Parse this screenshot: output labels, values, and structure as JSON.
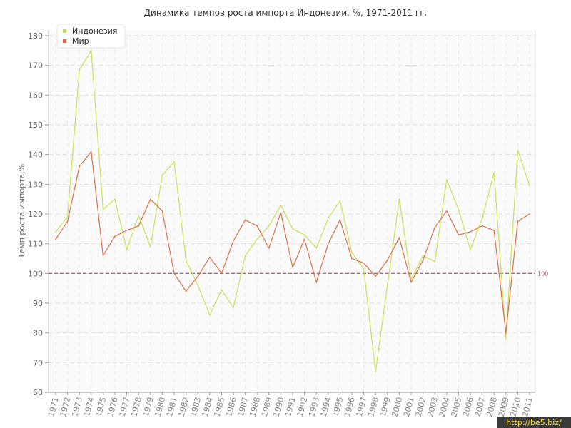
{
  "chart_data": {
    "type": "line",
    "title": "Динамика темпов роста импорта Индонезии, %, 1971-2011 гг.",
    "ylabel": "Темп роста импорта,%",
    "xlabel": "",
    "ylim": [
      60,
      180
    ],
    "yticks": [
      60,
      70,
      80,
      90,
      100,
      110,
      120,
      130,
      140,
      150,
      160,
      170,
      180
    ],
    "grid": true,
    "legend_position": "top-left",
    "categories": [
      "1971",
      "1972",
      "1973",
      "1974",
      "1975",
      "1976",
      "1977",
      "1978",
      "1979",
      "1980",
      "1981",
      "1982",
      "1983",
      "1984",
      "1985",
      "1986",
      "1987",
      "1988",
      "1989",
      "1990",
      "1991",
      "1992",
      "1993",
      "1994",
      "1995",
      "1996",
      "1997",
      "1998",
      "1999",
      "2000",
      "2001",
      "2002",
      "2003",
      "2004",
      "2005",
      "2006",
      "2007",
      "2008",
      "2009",
      "2010",
      "2011"
    ],
    "series": [
      {
        "name": "Индонезия",
        "color": "#c8e05a",
        "values": [
          114,
          119,
          168.5,
          175,
          121.5,
          125,
          108,
          119.5,
          109,
          133,
          137.5,
          104.5,
          96,
          86,
          94.5,
          88.5,
          106,
          111.5,
          116,
          123,
          115,
          113,
          108.5,
          118.5,
          124.5,
          107,
          101.5,
          67,
          96,
          125,
          98,
          106,
          104,
          131.5,
          121.5,
          108,
          118.5,
          134,
          78,
          141.5,
          129.5
        ]
      },
      {
        "name": "Мир",
        "color": "#d9704a",
        "values": [
          111.5,
          117.5,
          136,
          141,
          106,
          112.5,
          114.5,
          116,
          125,
          121,
          100,
          94,
          99,
          105.5,
          100,
          111,
          118,
          116,
          108.5,
          120.5,
          102,
          111.5,
          97,
          110,
          118,
          105,
          103.5,
          99,
          104.5,
          112,
          97,
          104.5,
          115.5,
          121,
          113,
          114,
          116,
          114.5,
          80,
          117.5,
          120
        ]
      }
    ],
    "reference_line": {
      "value": 100,
      "label": "100",
      "color": "#a05060"
    }
  },
  "watermark": "http://be5.biz/"
}
